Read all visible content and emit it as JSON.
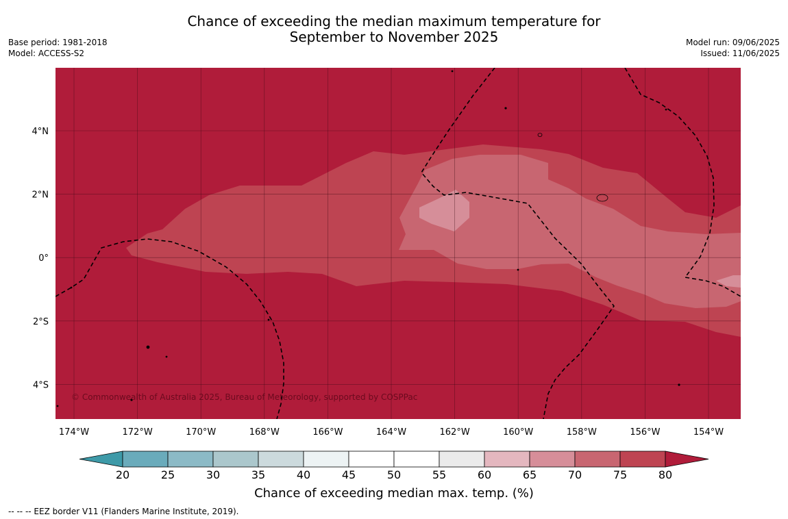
{
  "title_line1": "Chance of exceeding the median maximum temperature for",
  "title_line2": "September to November 2025",
  "base_period": "Base period: 1981-2018",
  "model": "Model: ACCESS-S2",
  "model_run": "Model run: 09/06/2025",
  "issued": "Issued: 11/06/2025",
  "copyright": "© Commonwealth of Australia 2025, Bureau of Meteorology, supported by COSPPac",
  "footnote": "--  --  -- EEZ border V11 (Flanders Marine Institute, 2019).",
  "lon_labels": [
    "174°W",
    "172°W",
    "170°W",
    "168°W",
    "166°W",
    "164°W",
    "162°W",
    "160°W",
    "158°W",
    "156°W",
    "154°W"
  ],
  "lat_labels": [
    "4°N",
    "2°N",
    "0°",
    "2°S",
    "4°S"
  ],
  "colorbar": {
    "title": "Chance of exceeding median max. temp. (%)",
    "ticks": [
      "20",
      "25",
      "30",
      "35",
      "40",
      "45",
      "50",
      "55",
      "60",
      "65",
      "70",
      "75",
      "80"
    ],
    "colors": [
      "#6aabbb",
      "#8cbac6",
      "#abc7cc",
      "#ccdadd",
      "#edf3f4",
      "#ffffff",
      "#ffffff",
      "#ebebeb",
      "#e4b7bf",
      "#d68e99",
      "#c86671",
      "#be4452"
    ],
    "under_color": "#3e9aa8",
    "over_color": "#b01c3a"
  },
  "map_colors": {
    "over_80": "#b01c3a",
    "band_75_80": "#be4452",
    "band_70_75": "#c86671",
    "band_65_70": "#d68e99"
  }
}
